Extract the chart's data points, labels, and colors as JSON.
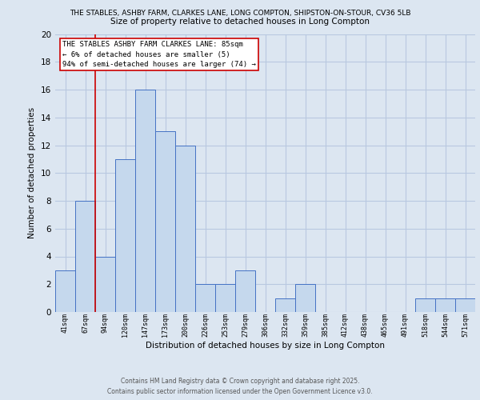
{
  "title_top": "THE STABLES, ASHBY FARM, CLARKES LANE, LONG COMPTON, SHIPSTON-ON-STOUR, CV36 5LB",
  "title_main": "Size of property relative to detached houses in Long Compton",
  "xlabel": "Distribution of detached houses by size in Long Compton",
  "ylabel": "Number of detached properties",
  "bar_labels": [
    "41sqm",
    "67sqm",
    "94sqm",
    "120sqm",
    "147sqm",
    "173sqm",
    "200sqm",
    "226sqm",
    "253sqm",
    "279sqm",
    "306sqm",
    "332sqm",
    "359sqm",
    "385sqm",
    "412sqm",
    "438sqm",
    "465sqm",
    "491sqm",
    "518sqm",
    "544sqm",
    "571sqm"
  ],
  "bar_values": [
    3,
    8,
    4,
    11,
    16,
    13,
    12,
    2,
    2,
    3,
    0,
    1,
    2,
    0,
    0,
    0,
    0,
    0,
    1,
    1,
    1
  ],
  "bar_color": "#c5d8ed",
  "bar_edge_color": "#4472c4",
  "background_color": "#dce6f1",
  "plot_bg_color": "#dce6f1",
  "grid_color": "#b8c8e0",
  "vline_x_index": 1.5,
  "vline_color": "#cc0000",
  "ylim": [
    0,
    20
  ],
  "yticks": [
    0,
    2,
    4,
    6,
    8,
    10,
    12,
    14,
    16,
    18,
    20
  ],
  "annotation_title": "THE STABLES ASHBY FARM CLARKES LANE: 85sqm",
  "annotation_line1": "← 6% of detached houses are smaller (5)",
  "annotation_line2": "94% of semi-detached houses are larger (74) →",
  "annotation_box_color": "#ffffff",
  "annotation_box_edge": "#cc0000",
  "footer1": "Contains HM Land Registry data © Crown copyright and database right 2025.",
  "footer2": "Contains public sector information licensed under the Open Government Licence v3.0."
}
